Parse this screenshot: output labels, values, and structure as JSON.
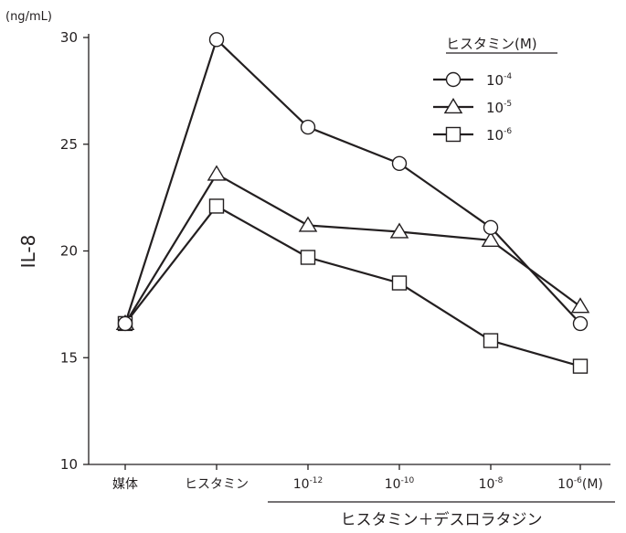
{
  "chart_data": {
    "type": "line",
    "y_unit": "(ng/mL)",
    "ylabel": "IL-8",
    "ylim": [
      10,
      30
    ],
    "yticks": [
      10,
      15,
      20,
      25,
      30
    ],
    "categories": [
      {
        "base": "媒体",
        "exp": "",
        "suffix": ""
      },
      {
        "base": "ヒスタミン",
        "exp": "",
        "suffix": ""
      },
      {
        "base": "10",
        "exp": "-12",
        "suffix": ""
      },
      {
        "base": "10",
        "exp": "-10",
        "suffix": ""
      },
      {
        "base": "10",
        "exp": "-8",
        "suffix": ""
      },
      {
        "base": "10",
        "exp": "-6",
        "suffix": "(M)"
      }
    ],
    "group_label": "ヒスタミン＋デスロラタジン",
    "legend_title": "ヒスタミン(M)",
    "legend_position": "top-right",
    "grid": false,
    "series": [
      {
        "name": "10-4",
        "name_base": "10",
        "name_exp": "-4",
        "marker": "circle",
        "values": [
          16.6,
          29.9,
          25.8,
          24.1,
          21.1,
          16.6
        ]
      },
      {
        "name": "10-5",
        "name_base": "10",
        "name_exp": "-5",
        "marker": "triangle",
        "values": [
          16.6,
          23.6,
          21.2,
          20.9,
          20.5,
          17.4
        ]
      },
      {
        "name": "10-6",
        "name_base": "10",
        "name_exp": "-6",
        "marker": "square",
        "values": [
          16.6,
          22.1,
          19.7,
          18.5,
          15.8,
          14.6
        ]
      }
    ],
    "colors": {
      "line": "#231f20",
      "marker_fill": "#ffffff"
    }
  }
}
